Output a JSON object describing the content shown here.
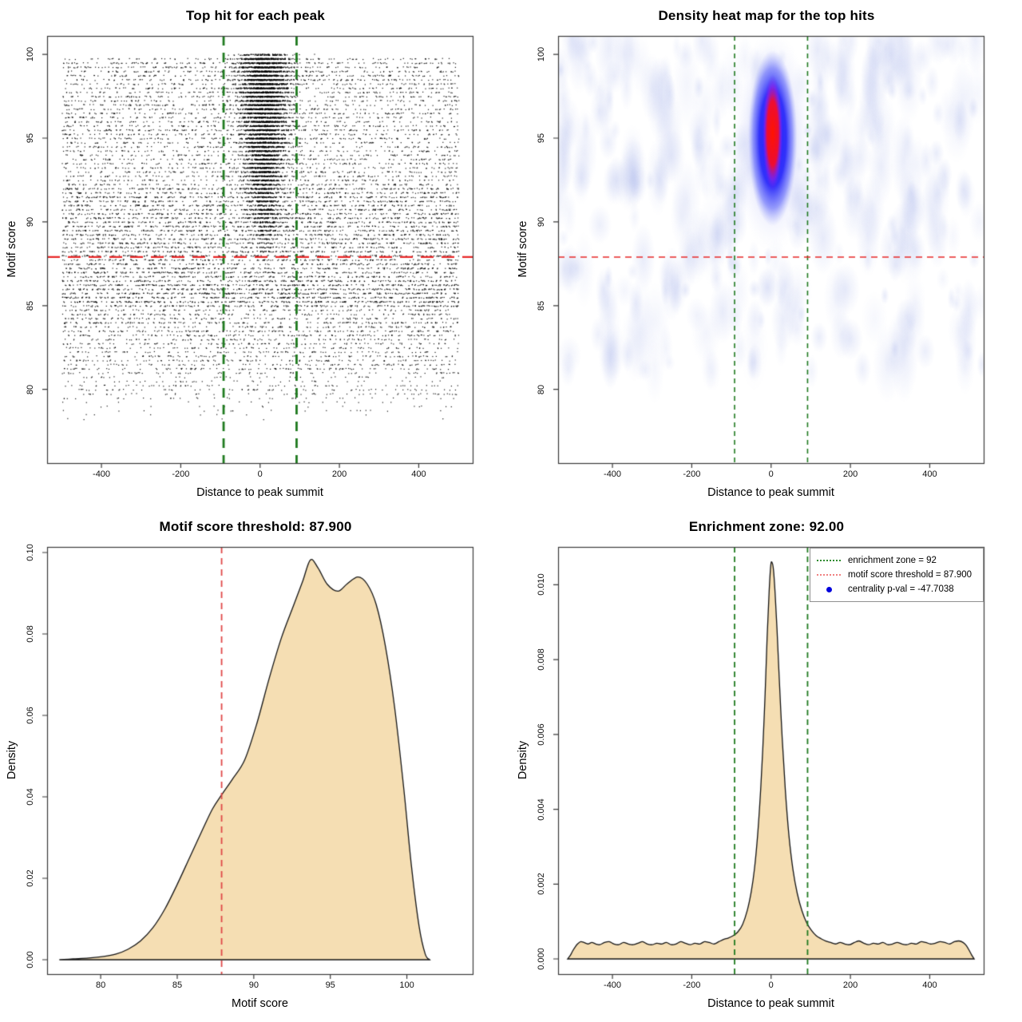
{
  "colors": {
    "frame": "#3a3a3a",
    "point": "#000000",
    "green_line": "#1f7a1f",
    "red_line": "#e82828",
    "red_line_soft": "#e04848",
    "legend_red": "#f08080",
    "legend_green": "#2e8b2e",
    "legend_blue": "#0000dd",
    "area_fill": "#f5deb3",
    "curve_stroke": "#141414",
    "heat_noise": "#96a5e6",
    "heat_blue": "#1e1efa",
    "heat_red": "#ff1400"
  },
  "chart_data": [
    {
      "type": "scatter",
      "title": "Top hit for each peak",
      "xlabel": "Distance to peak summit",
      "ylabel": "Motif score",
      "xticks": [
        -400,
        -200,
        0,
        200,
        400
      ],
      "xtick_labels": [
        "-400",
        "-200",
        "0",
        "200",
        "400"
      ],
      "yticks": [
        80,
        85,
        90,
        95,
        100
      ],
      "ytick_labels": [
        "80",
        "85",
        "90",
        "95",
        "100"
      ],
      "xlim": [
        -537,
        536
      ],
      "ylim": [
        75.6,
        101.1
      ],
      "motif_score_threshold": 87.9,
      "enrichment_zone_lines": [
        -92,
        92
      ],
      "n_background_points": 12000,
      "n_cluster_points": 6500,
      "background_x_range": [
        -500,
        500
      ],
      "background_y_mixture": [
        [
          0.6,
          85.0,
          99.8
        ],
        [
          0.23,
          83.0,
          92.0
        ],
        [
          0.11,
          81.0,
          86.5
        ],
        [
          0.05,
          79.5,
          83.0
        ],
        [
          0.01,
          78.2,
          80.5
        ]
      ],
      "cluster": {
        "x_mean": 10,
        "x_sd": 30,
        "y_min": 88,
        "y_max": 100
      },
      "score_quantum": 0.25
    },
    {
      "type": "heatmap",
      "title": "Density heat map for the top hits",
      "xlabel": "Distance to peak summit",
      "ylabel": "Motif score",
      "xticks": [
        -400,
        -200,
        0,
        200,
        400
      ],
      "xtick_labels": [
        "-400",
        "-200",
        "0",
        "200",
        "400"
      ],
      "yticks": [
        80,
        85,
        90,
        95,
        100
      ],
      "ytick_labels": [
        "80",
        "85",
        "90",
        "95",
        "100"
      ],
      "xlim": [
        -537,
        536
      ],
      "ylim": [
        75.6,
        101.1
      ],
      "motif_score_threshold": 87.9,
      "enrichment_zone_lines": [
        -92,
        92
      ],
      "hotspot": {
        "x_center": 4,
        "red_core": {
          "y_center": 95.3,
          "y_half_units": 3.5,
          "x_half_units": 26
        },
        "blue_zone": {
          "y_center": 95.0,
          "y_half_units": 5.25,
          "x_half_units": 62
        },
        "halo": {
          "y_center": 94.8,
          "y_half_units": 6.6,
          "x_half_units": 100
        }
      },
      "noise_region_y": [
        81,
        101
      ]
    },
    {
      "type": "area",
      "title": "Motif score threshold: 87.900",
      "xlabel": "Motif score",
      "ylabel": "Density",
      "xticks": [
        80,
        85,
        90,
        95,
        100
      ],
      "xtick_labels": [
        "80",
        "85",
        "90",
        "95",
        "100"
      ],
      "yticks": [
        0.0,
        0.02,
        0.04,
        0.06,
        0.08,
        0.1
      ],
      "ytick_labels": [
        "0.00",
        "0.02",
        "0.04",
        "0.06",
        "0.08",
        "0.10"
      ],
      "xlim": [
        76.5,
        104.3
      ],
      "ylim": [
        -0.00353,
        0.10137
      ],
      "threshold_line": 87.9,
      "curve": [
        [
          77.3,
          0
        ],
        [
          78.2,
          0.0002
        ],
        [
          79.2,
          0.0004
        ],
        [
          80.2,
          0.0008
        ],
        [
          81.0,
          0.0014
        ],
        [
          81.8,
          0.0026
        ],
        [
          82.6,
          0.0046
        ],
        [
          83.4,
          0.0078
        ],
        [
          84.2,
          0.0125
        ],
        [
          85.0,
          0.0185
        ],
        [
          85.8,
          0.025
        ],
        [
          86.6,
          0.0315
        ],
        [
          87.3,
          0.037
        ],
        [
          87.9,
          0.0405
        ],
        [
          88.6,
          0.0443
        ],
        [
          89.4,
          0.049
        ],
        [
          90.2,
          0.058
        ],
        [
          91.0,
          0.069
        ],
        [
          91.8,
          0.079
        ],
        [
          92.6,
          0.087
        ],
        [
          93.2,
          0.093
        ],
        [
          93.7,
          0.0982
        ],
        [
          94.2,
          0.0962
        ],
        [
          94.8,
          0.0922
        ],
        [
          95.5,
          0.0905
        ],
        [
          96.1,
          0.0923
        ],
        [
          96.8,
          0.094
        ],
        [
          97.4,
          0.0923
        ],
        [
          98.0,
          0.0872
        ],
        [
          98.6,
          0.077
        ],
        [
          99.2,
          0.062
        ],
        [
          99.8,
          0.042
        ],
        [
          100.3,
          0.023
        ],
        [
          100.8,
          0.0082
        ],
        [
          101.2,
          0.0014
        ],
        [
          101.5,
          0
        ]
      ]
    },
    {
      "type": "area",
      "title": "Enrichment zone: 92.00",
      "xlabel": "Distance to peak summit",
      "ylabel": "Density",
      "xticks": [
        -400,
        -200,
        0,
        200,
        400
      ],
      "xtick_labels": [
        "-400",
        "-200",
        "0",
        "200",
        "400"
      ],
      "yticks": [
        0.0,
        0.002,
        0.004,
        0.006,
        0.008,
        0.01
      ],
      "ytick_labels": [
        "0.000",
        "0.002",
        "0.004",
        "0.006",
        "0.008",
        "0.010"
      ],
      "xlim": [
        -537,
        536
      ],
      "ylim": [
        -0.000405,
        0.01101
      ],
      "enrichment_zone_lines": [
        -92,
        92
      ],
      "annotations": {
        "enrichment_zone": 92,
        "motif_score_threshold": 87.9,
        "centrality_p_val": -47.7038
      },
      "legend": {
        "items": [
          {
            "label": "enrichment zone = 92",
            "symbol": "dotted-line",
            "color": "green"
          },
          {
            "label": "motif score threshold = 87.900",
            "symbol": "dotted-line",
            "color": "red"
          },
          {
            "label": "centrality p-val = -47.7038",
            "symbol": "point",
            "color": "blue"
          }
        ]
      },
      "curve": [
        [
          -513,
          0
        ],
        [
          -506,
          0.0001
        ],
        [
          -500,
          0.00022
        ],
        [
          -494,
          0.00032
        ],
        [
          -488,
          0.0004
        ],
        [
          -480,
          0.00046
        ],
        [
          -472,
          0.00044
        ],
        [
          -462,
          0.0004
        ],
        [
          -452,
          0.00044
        ],
        [
          -442,
          0.0004
        ],
        [
          -432,
          0.00038
        ],
        [
          -420,
          0.00044
        ],
        [
          -408,
          0.00046
        ],
        [
          -396,
          0.0004
        ],
        [
          -384,
          0.00038
        ],
        [
          -372,
          0.00044
        ],
        [
          -360,
          0.0004
        ],
        [
          -348,
          0.00038
        ],
        [
          -336,
          0.00042
        ],
        [
          -324,
          0.00046
        ],
        [
          -312,
          0.0004
        ],
        [
          -300,
          0.00038
        ],
        [
          -288,
          0.00042
        ],
        [
          -276,
          0.0004
        ],
        [
          -264,
          0.00044
        ],
        [
          -252,
          0.00038
        ],
        [
          -240,
          0.0004
        ],
        [
          -228,
          0.00046
        ],
        [
          -216,
          0.00042
        ],
        [
          -204,
          0.00038
        ],
        [
          -192,
          0.00042
        ],
        [
          -180,
          0.0004
        ],
        [
          -168,
          0.00046
        ],
        [
          -156,
          0.00044
        ],
        [
          -144,
          0.0004
        ],
        [
          -132,
          0.00046
        ],
        [
          -120,
          0.00052
        ],
        [
          -108,
          0.00056
        ],
        [
          -96,
          0.00062
        ],
        [
          -84,
          0.00072
        ],
        [
          -72,
          0.00092
        ],
        [
          -60,
          0.0013
        ],
        [
          -50,
          0.0018
        ],
        [
          -42,
          0.0024
        ],
        [
          -34,
          0.0033
        ],
        [
          -27,
          0.0044
        ],
        [
          -21,
          0.0056
        ],
        [
          -15,
          0.0071
        ],
        [
          -10,
          0.0086
        ],
        [
          -5,
          0.0098
        ],
        [
          -1,
          0.0105
        ],
        [
          2,
          0.0106
        ],
        [
          6,
          0.0104
        ],
        [
          10,
          0.0098
        ],
        [
          15,
          0.0088
        ],
        [
          21,
          0.0074
        ],
        [
          28,
          0.0059
        ],
        [
          36,
          0.0045
        ],
        [
          45,
          0.0033
        ],
        [
          55,
          0.0024
        ],
        [
          66,
          0.00175
        ],
        [
          78,
          0.00128
        ],
        [
          90,
          0.00096
        ],
        [
          102,
          0.00076
        ],
        [
          114,
          0.00062
        ],
        [
          126,
          0.00054
        ],
        [
          138,
          0.00048
        ],
        [
          150,
          0.00044
        ],
        [
          162,
          0.0004
        ],
        [
          174,
          0.00044
        ],
        [
          186,
          0.0004
        ],
        [
          198,
          0.00038
        ],
        [
          210,
          0.00044
        ],
        [
          222,
          0.00048
        ],
        [
          234,
          0.00042
        ],
        [
          246,
          0.00038
        ],
        [
          258,
          0.00042
        ],
        [
          270,
          0.0004
        ],
        [
          282,
          0.00044
        ],
        [
          294,
          0.00038
        ],
        [
          306,
          0.0004
        ],
        [
          318,
          0.00044
        ],
        [
          330,
          0.0004
        ],
        [
          342,
          0.00038
        ],
        [
          354,
          0.00042
        ],
        [
          366,
          0.0004
        ],
        [
          378,
          0.00046
        ],
        [
          390,
          0.00044
        ],
        [
          402,
          0.0004
        ],
        [
          414,
          0.00042
        ],
        [
          426,
          0.00046
        ],
        [
          438,
          0.00044
        ],
        [
          450,
          0.0004
        ],
        [
          462,
          0.00046
        ],
        [
          474,
          0.00048
        ],
        [
          484,
          0.00044
        ],
        [
          492,
          0.00036
        ],
        [
          500,
          0.00022
        ],
        [
          506,
          0.0001
        ],
        [
          512,
          0
        ]
      ]
    }
  ]
}
